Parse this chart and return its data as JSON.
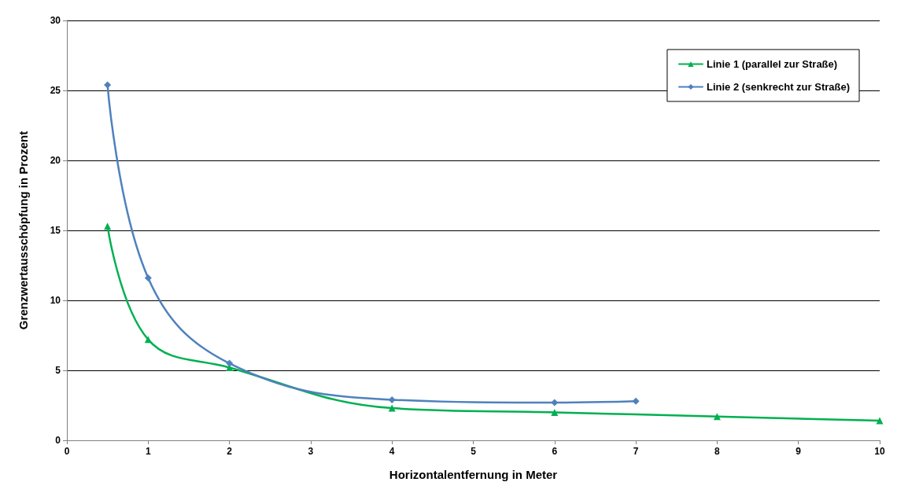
{
  "chart_data": {
    "type": "line",
    "xlabel": "Horizontalentfernung in Meter",
    "ylabel": "Grenzwertausschöpfung in Prozent",
    "xlim": [
      0,
      10
    ],
    "xticks": [
      0,
      1,
      2,
      3,
      4,
      5,
      6,
      7,
      8,
      9,
      10
    ],
    "ylim": [
      0,
      30
    ],
    "yticks": [
      0,
      5,
      10,
      15,
      20,
      25,
      30
    ],
    "grid": "y",
    "legend": "top right",
    "line_style": "solid",
    "series": [
      {
        "name": "Linie 1 (parallel zur Straße)",
        "color": "#00b050",
        "marker": "triangle",
        "x": [
          0.5,
          1,
          2,
          4,
          6,
          8,
          10
        ],
        "values": [
          15.3,
          7.2,
          5.2,
          2.3,
          2.0,
          1.7,
          1.4
        ]
      },
      {
        "name": "Linie 2 (senkrecht zur Straße)",
        "color": "#4f81bd",
        "marker": "diamond",
        "x": [
          0.5,
          1,
          2,
          4,
          6,
          7
        ],
        "values": [
          25.4,
          11.6,
          5.5,
          2.9,
          2.7,
          2.8
        ]
      }
    ]
  }
}
